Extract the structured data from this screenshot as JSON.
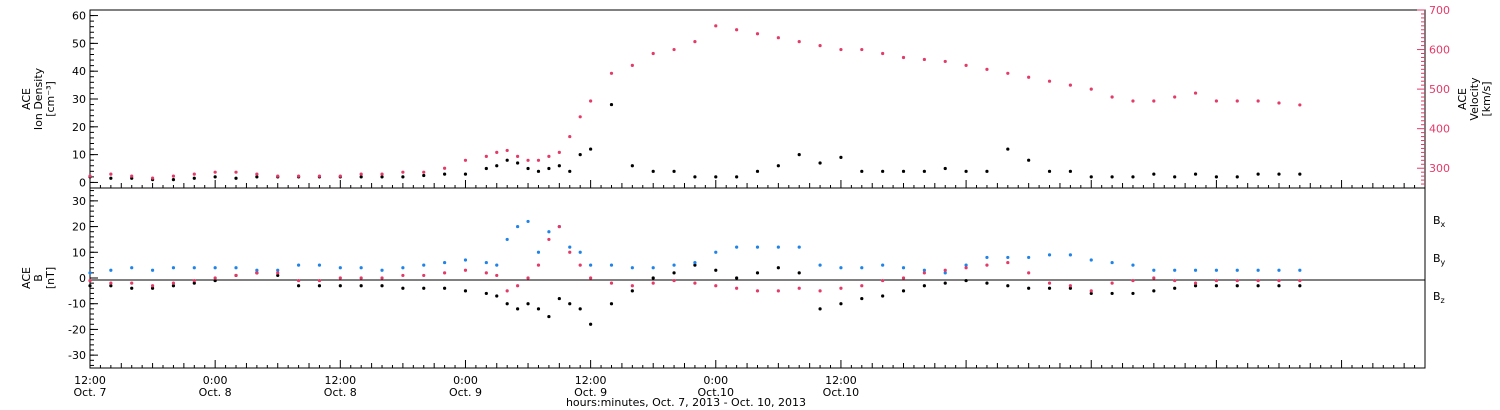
{
  "colors": {
    "black": "#000000",
    "blue": "#1f83e8",
    "red": "#e33a68",
    "axis": "#000000"
  },
  "chart_data": [
    {
      "type": "scatter",
      "panel": "top",
      "ylabel_lines": [
        "ACE",
        "Ion Density",
        "[cm⁻³]"
      ],
      "ylabel2_lines": [
        "ACE",
        "Velocity",
        "[km/s]"
      ],
      "ylim": [
        -2,
        62
      ],
      "y2lim": [
        250,
        700
      ],
      "yticks": [
        0,
        10,
        20,
        30,
        40,
        50,
        60
      ],
      "y2ticks": [
        300,
        400,
        500,
        600,
        700
      ],
      "series": [
        {
          "color": "black",
          "x": [
            0,
            2,
            4,
            6,
            8,
            10,
            12,
            14,
            16,
            18,
            20,
            22,
            24,
            26,
            28,
            30,
            32,
            34,
            36,
            38,
            39,
            40,
            41,
            42,
            43,
            44,
            45,
            46,
            47,
            48,
            50,
            52,
            54,
            56,
            58,
            60,
            62,
            64,
            66,
            68,
            70,
            72,
            74,
            76,
            78,
            80,
            82,
            84,
            86,
            88,
            90,
            92,
            94,
            96,
            98,
            100,
            102,
            104,
            106,
            108,
            110,
            112,
            114,
            116
          ],
          "y": [
            2,
            1.5,
            1.5,
            1,
            1,
            1.5,
            2,
            1.5,
            2,
            2,
            2,
            2,
            2,
            2,
            2,
            2,
            2.5,
            3,
            3,
            5,
            6,
            8,
            7,
            5,
            4,
            5,
            6,
            4,
            10,
            12,
            28,
            6,
            4,
            4,
            2,
            2,
            2,
            4,
            6,
            10,
            7,
            9,
            4,
            4,
            4,
            4,
            5,
            4,
            4,
            12,
            8,
            4,
            4,
            2,
            2,
            2,
            3,
            2,
            3,
            2,
            2,
            3,
            3,
            3
          ]
        },
        {
          "color": "red",
          "axis": "right",
          "x": [
            0,
            2,
            4,
            6,
            8,
            10,
            12,
            14,
            16,
            18,
            20,
            22,
            24,
            26,
            28,
            30,
            32,
            34,
            36,
            38,
            39,
            40,
            41,
            42,
            43,
            44,
            45,
            46,
            47,
            48,
            50,
            52,
            54,
            56,
            58,
            60,
            62,
            64,
            66,
            68,
            70,
            72,
            74,
            76,
            78,
            80,
            82,
            84,
            86,
            88,
            90,
            92,
            94,
            96,
            98,
            100,
            102,
            104,
            106,
            108,
            110,
            112,
            114,
            116
          ],
          "y": [
            280,
            285,
            280,
            275,
            280,
            285,
            290,
            290,
            285,
            280,
            280,
            280,
            280,
            285,
            285,
            290,
            290,
            300,
            320,
            330,
            340,
            345,
            330,
            320,
            320,
            330,
            340,
            380,
            430,
            470,
            540,
            560,
            590,
            600,
            620,
            660,
            650,
            640,
            630,
            620,
            610,
            600,
            600,
            590,
            580,
            575,
            570,
            560,
            550,
            540,
            530,
            520,
            510,
            500,
            480,
            470,
            470,
            480,
            490,
            470,
            470,
            470,
            465,
            460
          ]
        }
      ]
    },
    {
      "type": "scatter",
      "panel": "bottom",
      "ylabel_lines": [
        "ACE",
        "B",
        "[nT]"
      ],
      "ylim": [
        -35,
        35
      ],
      "yticks": [
        -30,
        -20,
        -10,
        0,
        10,
        20,
        30
      ],
      "legend": [
        {
          "text": "B",
          "sub": "x",
          "color": "black"
        },
        {
          "text": "B",
          "sub": "y",
          "color": "blue"
        },
        {
          "text": "B",
          "sub": "z",
          "color": "red"
        }
      ],
      "series": [
        {
          "name": "Bx",
          "color": "black",
          "x": [
            0,
            2,
            4,
            6,
            8,
            10,
            12,
            14,
            16,
            18,
            20,
            22,
            24,
            26,
            28,
            30,
            32,
            34,
            36,
            38,
            39,
            40,
            41,
            42,
            43,
            44,
            45,
            46,
            47,
            48,
            50,
            52,
            54,
            56,
            58,
            60,
            62,
            64,
            66,
            68,
            70,
            72,
            74,
            76,
            78,
            80,
            82,
            84,
            86,
            88,
            90,
            92,
            94,
            96,
            98,
            100,
            102,
            104,
            106,
            108,
            110,
            112,
            114,
            116
          ],
          "y": [
            -3,
            -3,
            -4,
            -4,
            -3,
            -2,
            -1,
            1,
            2,
            1,
            -3,
            -3,
            -3,
            -3,
            -3,
            -4,
            -4,
            -4,
            -5,
            -6,
            -7,
            -10,
            -12,
            -10,
            -12,
            -15,
            -8,
            -10,
            -12,
            -18,
            -10,
            -5,
            0,
            2,
            5,
            3,
            0,
            2,
            4,
            2,
            -12,
            -10,
            -8,
            -7,
            -5,
            -3,
            -2,
            -1,
            -2,
            -3,
            -4,
            -4,
            -4,
            -6,
            -6,
            -6,
            -5,
            -4,
            -3,
            -3,
            -3,
            -3,
            -3,
            -3
          ]
        },
        {
          "name": "By",
          "color": "blue",
          "x": [
            0,
            2,
            4,
            6,
            8,
            10,
            12,
            14,
            16,
            18,
            20,
            22,
            24,
            26,
            28,
            30,
            32,
            34,
            36,
            38,
            39,
            40,
            41,
            42,
            43,
            44,
            45,
            46,
            47,
            48,
            50,
            52,
            54,
            56,
            58,
            60,
            62,
            64,
            66,
            68,
            70,
            72,
            74,
            76,
            78,
            80,
            82,
            84,
            86,
            88,
            90,
            92,
            94,
            96,
            98,
            100,
            102,
            104,
            106,
            108,
            110,
            112,
            114,
            116
          ],
          "y": [
            2,
            3,
            4,
            3,
            4,
            4,
            4,
            4,
            3,
            3,
            5,
            5,
            4,
            4,
            3,
            4,
            5,
            6,
            7,
            6,
            5,
            15,
            20,
            22,
            10,
            18,
            20,
            12,
            10,
            5,
            5,
            4,
            4,
            5,
            6,
            10,
            12,
            12,
            12,
            12,
            5,
            4,
            4,
            5,
            4,
            3,
            2,
            5,
            8,
            8,
            8,
            9,
            9,
            7,
            6,
            5,
            3,
            3,
            3,
            3,
            3,
            3,
            3,
            3
          ]
        },
        {
          "name": "Bz",
          "color": "red",
          "x": [
            0,
            2,
            4,
            6,
            8,
            10,
            12,
            14,
            16,
            18,
            20,
            22,
            24,
            26,
            28,
            30,
            32,
            34,
            36,
            38,
            39,
            40,
            41,
            42,
            43,
            44,
            45,
            46,
            47,
            48,
            50,
            52,
            54,
            56,
            58,
            60,
            62,
            64,
            66,
            68,
            70,
            72,
            74,
            76,
            78,
            80,
            82,
            84,
            86,
            88,
            90,
            92,
            94,
            96,
            98,
            100,
            102,
            104,
            106,
            108,
            110,
            112,
            114,
            116
          ],
          "y": [
            -1,
            -2,
            -2,
            -3,
            -2,
            -1,
            0,
            1,
            2,
            2,
            -1,
            -1,
            0,
            0,
            0,
            1,
            1,
            2,
            3,
            2,
            1,
            -5,
            -3,
            0,
            5,
            15,
            20,
            10,
            5,
            0,
            -2,
            -3,
            -2,
            -1,
            -2,
            -3,
            -4,
            -5,
            -5,
            -4,
            -5,
            -4,
            -3,
            -1,
            0,
            2,
            3,
            4,
            5,
            6,
            2,
            -2,
            -3,
            -5,
            -2,
            -1,
            0,
            -1,
            -2,
            -1,
            -1,
            -1,
            -1,
            -1
          ]
        }
      ]
    }
  ],
  "x_axis": {
    "xlim": [
      0,
      128
    ],
    "ticks": [
      {
        "x": 0,
        "time": "12:00",
        "date": "Oct. 7"
      },
      {
        "x": 12,
        "time": "0:00",
        "date": "Oct. 8"
      },
      {
        "x": 24,
        "time": "12:00",
        "date": "Oct. 8"
      },
      {
        "x": 36,
        "time": "0:00",
        "date": "Oct. 9"
      },
      {
        "x": 48,
        "time": "12:00",
        "date": "Oct. 9"
      },
      {
        "x": 60,
        "time": "0:00",
        "date": "Oct.10"
      },
      {
        "x": 72,
        "time": "12:00",
        "date": "Oct.10"
      }
    ],
    "title": "hours:minutes, Oct.  7, 2013 - Oct. 10, 2013"
  }
}
